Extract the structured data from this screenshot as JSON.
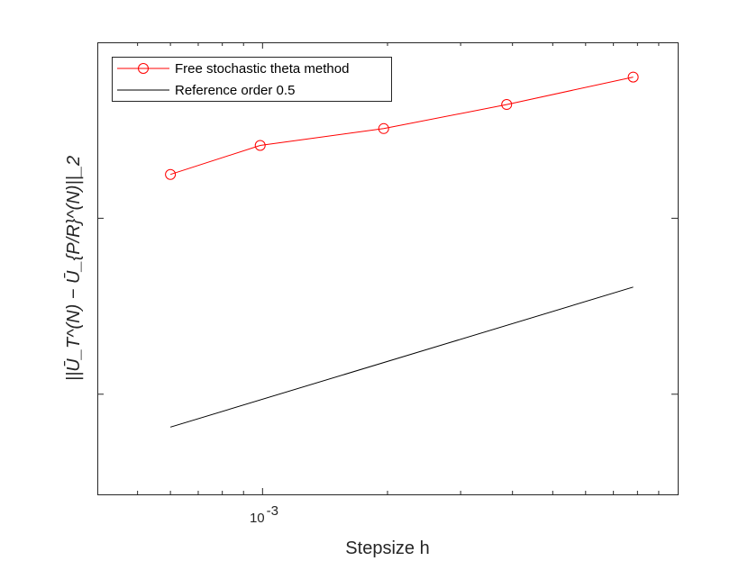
{
  "chart_data": {
    "type": "line",
    "x_scale": "log",
    "y_scale": "log",
    "xlim": [
      0.0004,
      0.01
    ],
    "ylim": [
      0.08,
      5
    ],
    "xlabel": "Stepsize h",
    "ylabel": "||Ū_T^(N) − Ū_{P/R}^(N)||_2",
    "x_tick_labels": [
      {
        "value": 0.001,
        "label": "10",
        "exponent": "-3"
      }
    ],
    "y_ticks": [
      0.2,
      1
    ],
    "grid": false,
    "legend_position": "top-left",
    "series": [
      {
        "name": "Free stochastic theta method",
        "color": "#ff0000",
        "marker": "circle",
        "x": [
          0.0006,
          0.0009871,
          0.001958,
          0.003873,
          0.007813
        ],
        "y": [
          1.493,
          1.947,
          2.271,
          2.831,
          3.639
        ]
      },
      {
        "name": "Reference order 0.5",
        "color": "#000000",
        "marker": "none",
        "x": [
          0.0006,
          0.007813
        ],
        "y": [
          0.148,
          0.533
        ]
      }
    ]
  }
}
